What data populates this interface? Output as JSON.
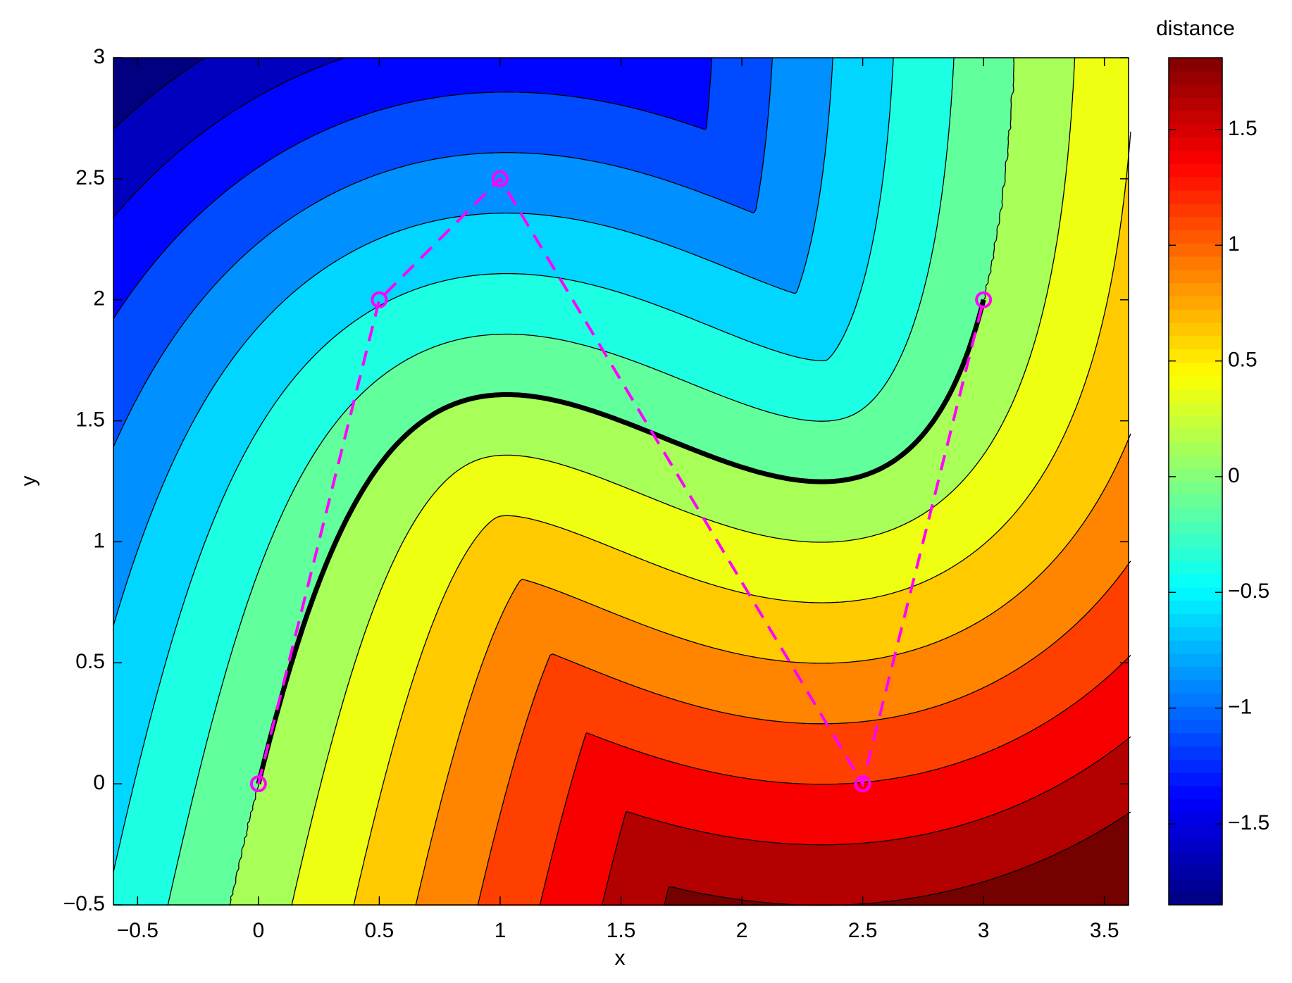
{
  "chart_data": {
    "type": "contour",
    "xlabel": "x",
    "ylabel": "y",
    "colorbar_label": "distance",
    "x": [
      0,
      0.5,
      1,
      2.5,
      3
    ],
    "y": [
      0,
      2,
      2.5,
      0,
      2
    ],
    "curve_color": "#000000",
    "polygon_color": "#ff00ff",
    "levels": [
      -1.75,
      -1.5,
      -1.25,
      -1,
      -0.75,
      -0.5,
      -0.25,
      0,
      0.25,
      0.5,
      0.75,
      1,
      1.25,
      1.5,
      1.75
    ],
    "xlim": [
      -0.6,
      3.6
    ],
    "ylim": [
      -0.5,
      3
    ],
    "clim": [
      -1.85,
      1.81
    ],
    "xticks": [
      {
        "value": -0.5,
        "label": "−0.5"
      },
      0,
      0.5,
      1,
      1.5,
      2,
      2.5,
      3,
      3.5
    ],
    "yticks": [
      {
        "value": -0.5,
        "label": "−0.5"
      },
      0,
      0.5,
      1,
      1.5,
      2,
      2.5,
      3
    ],
    "cticks": [
      {
        "value": -1.5,
        "label": "−1.5"
      },
      {
        "value": -1,
        "label": "−1"
      },
      {
        "value": -0.5,
        "label": "−0.5"
      },
      0,
      0.5,
      1,
      1.5
    ],
    "colormap": "jet"
  }
}
